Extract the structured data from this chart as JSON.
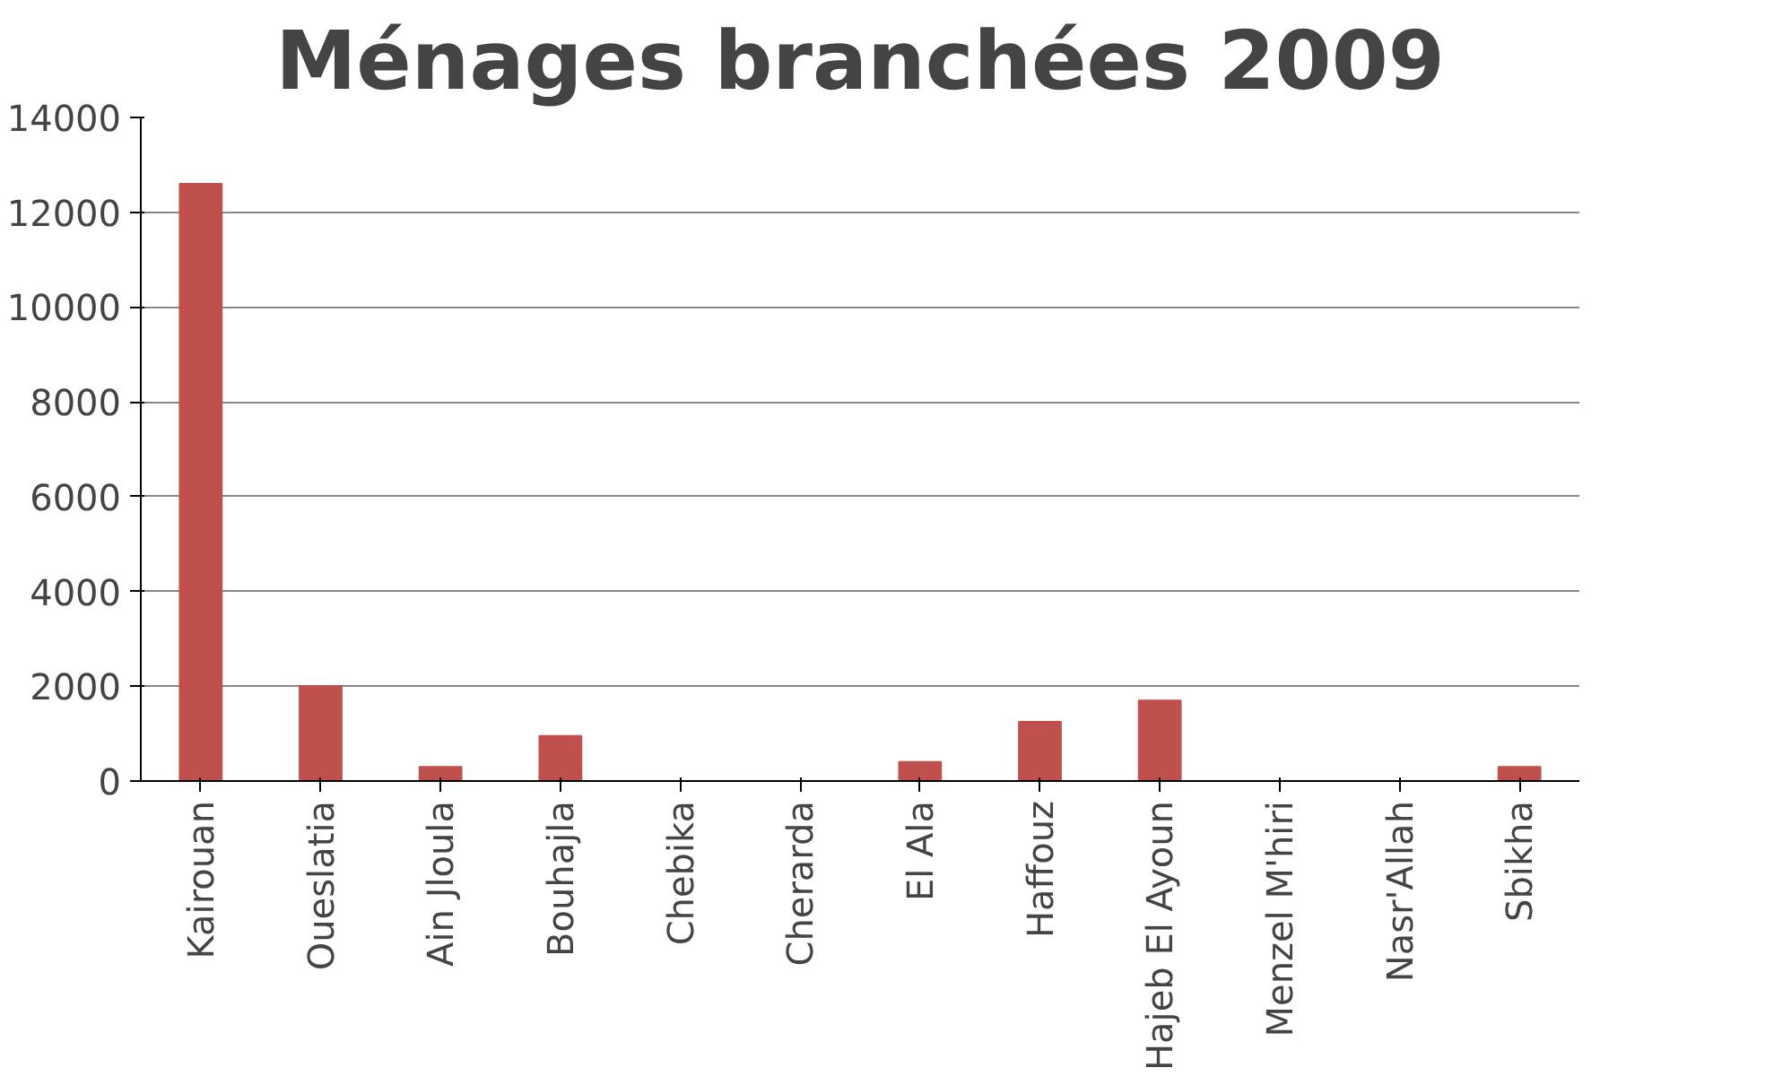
{
  "chart_data": {
    "type": "bar",
    "title": "Ménages branchées 2009",
    "categories": [
      "Kairouan",
      "Oueslatia",
      "Ain Jloula",
      "Bouhajla",
      "Chebika",
      "Cherarda",
      "El Ala",
      "Haffouz",
      "Hajeb El Ayoun",
      "Menzel M'hiri",
      "Nasr'Allah",
      "Sbikha"
    ],
    "values": [
      12600,
      2000,
      300,
      950,
      0,
      0,
      400,
      1250,
      1700,
      0,
      0,
      300
    ],
    "color": "#c0504d",
    "ylim": [
      0,
      14000
    ],
    "yticks": [
      0,
      2000,
      4000,
      6000,
      8000,
      10000,
      12000,
      14000
    ],
    "grid": "y"
  }
}
